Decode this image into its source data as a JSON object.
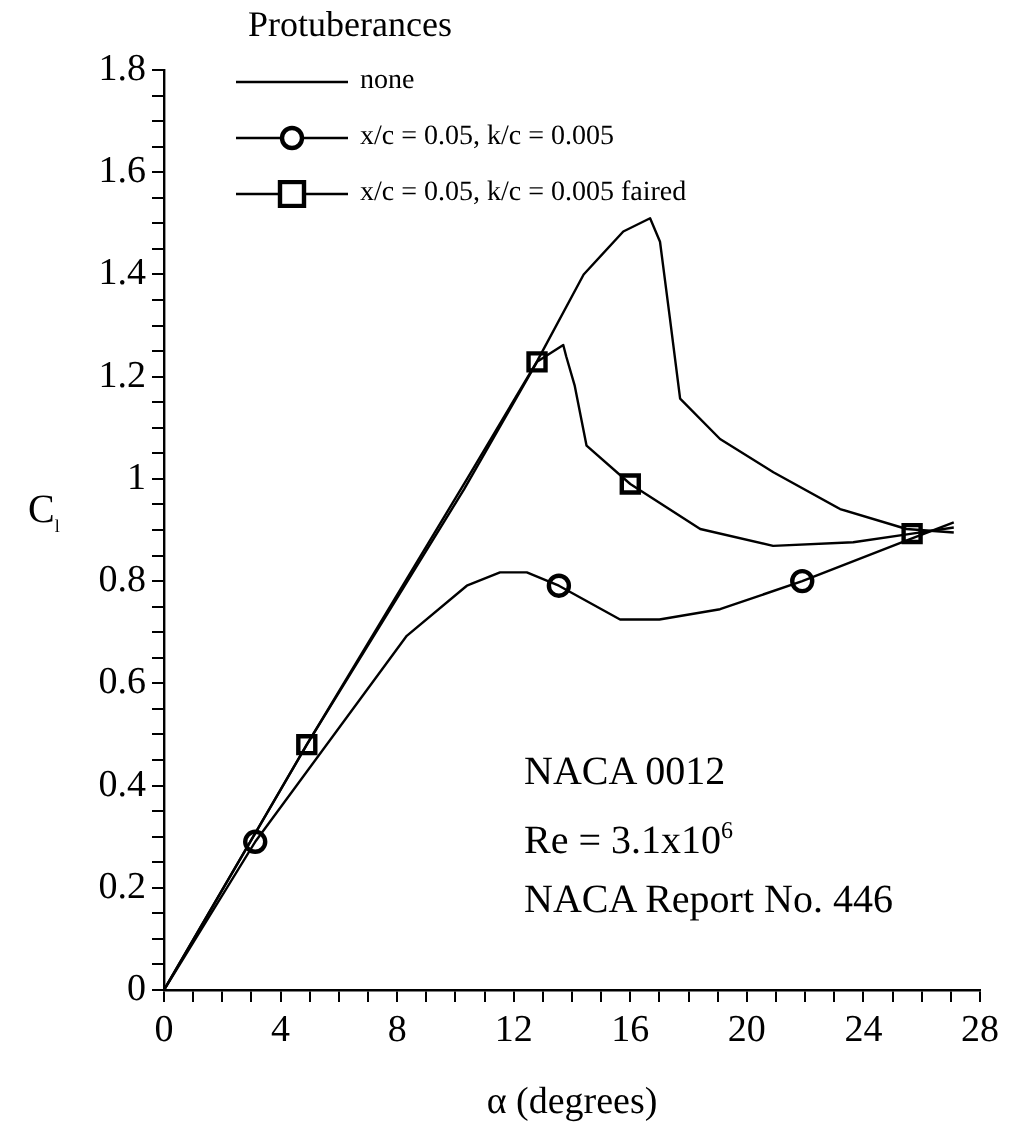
{
  "chart_data": {
    "type": "line",
    "xlabel": "α (degrees)",
    "ylabel": "C$_{l}$",
    "legend_title": "Protuberances",
    "legend": "top left",
    "grid": false,
    "line_style": "solid",
    "xlim": [
      0,
      28
    ],
    "ylim": [
      0,
      1.8
    ],
    "xticks": [
      0,
      {
        "value": 1,
        "label": null
      },
      {
        "value": 2,
        "label": null
      },
      {
        "value": 3,
        "label": null
      },
      4,
      {
        "value": 5,
        "label": null
      },
      {
        "value": 6,
        "label": null
      },
      {
        "value": 7,
        "label": null
      },
      8,
      {
        "value": 9,
        "label": null
      },
      {
        "value": 10,
        "label": null
      },
      {
        "value": 11,
        "label": null
      },
      12,
      {
        "value": 13,
        "label": null
      },
      {
        "value": 14,
        "label": null
      },
      {
        "value": 15,
        "label": null
      },
      16,
      {
        "value": 17,
        "label": null
      },
      {
        "value": 18,
        "label": null
      },
      {
        "value": 19,
        "label": null
      },
      20,
      {
        "value": 21,
        "label": null
      },
      {
        "value": 22,
        "label": null
      },
      {
        "value": 23,
        "label": null
      },
      24,
      {
        "value": 25,
        "label": null
      },
      {
        "value": 26,
        "label": null
      },
      {
        "value": 27,
        "label": null
      },
      28
    ],
    "yticks": [
      0,
      {
        "value": 0.05,
        "label": null
      },
      {
        "value": 0.1,
        "label": null
      },
      {
        "value": 0.15,
        "label": null
      },
      0.2,
      {
        "value": 0.25,
        "label": null
      },
      {
        "value": 0.3,
        "label": null
      },
      {
        "value": 0.35,
        "label": null
      },
      0.4,
      {
        "value": 0.45,
        "label": null
      },
      {
        "value": 0.5,
        "label": null
      },
      {
        "value": 0.55,
        "label": null
      },
      0.6,
      {
        "value": 0.65,
        "label": null
      },
      {
        "value": 0.7,
        "label": null
      },
      {
        "value": 0.75,
        "label": null
      },
      0.8,
      {
        "value": 0.85,
        "label": null
      },
      {
        "value": 0.9,
        "label": null
      },
      {
        "value": 0.95,
        "label": null
      },
      1,
      {
        "value": 1.05,
        "label": null
      },
      {
        "value": 1.1,
        "label": null
      },
      {
        "value": 1.15,
        "label": null
      },
      1.2,
      {
        "value": 1.25,
        "label": null
      },
      {
        "value": 1.3,
        "label": null
      },
      {
        "value": 1.35,
        "label": null
      },
      1.4,
      {
        "value": 1.45,
        "label": null
      },
      {
        "value": 1.5,
        "label": null
      },
      {
        "value": 1.55,
        "label": null
      },
      1.6,
      {
        "value": 1.65,
        "label": null
      },
      {
        "value": 1.7,
        "label": null
      },
      {
        "value": 1.75,
        "label": null
      },
      1.8
    ],
    "series": [
      {
        "name": "none",
        "marker": "none",
        "color": "#000000",
        "x": [
          0,
          4.9,
          10.4,
          12.8,
          14.4,
          15.76,
          16.68,
          17.02,
          17.36,
          17.71,
          19.08,
          20.91,
          23.2,
          25.48,
          27.1
        ],
        "values": [
          0,
          0.48,
          1.0,
          1.23,
          1.4,
          1.484,
          1.51,
          1.464,
          1.314,
          1.157,
          1.078,
          1.013,
          0.941,
          0.902,
          0.895
        ]
      },
      {
        "name": "x/c = 0.05, k/c = 0.005",
        "marker": "none",
        "color": "#000000",
        "x": [
          0,
          3.13,
          8.33,
          10.39,
          11.53,
          12.45,
          13.55,
          15.65,
          17.0,
          19.08,
          21.9,
          25.6,
          27.1
        ],
        "values": [
          0,
          0.29,
          0.693,
          0.791,
          0.817,
          0.817,
          0.791,
          0.725,
          0.725,
          0.745,
          0.8,
          0.882,
          0.915
        ]
      },
      {
        "name": "x/c = 0.05, k/c = 0.005 faired",
        "marker": "none",
        "color": "#000000",
        "x": [
          0,
          4.9,
          10.3,
          12.8,
          13.7,
          13.8,
          14.09,
          14.5,
          16.0,
          18.4,
          20.9,
          23.65,
          25.67,
          27.1
        ],
        "values": [
          0,
          0.48,
          0.98,
          1.229,
          1.262,
          1.24,
          1.183,
          1.065,
          0.99,
          0.902,
          0.869,
          0.876,
          0.893,
          0.905
        ]
      },
      {
        "type": "scatter",
        "marker": "circle",
        "color": "#000000",
        "x": [
          3.13,
          13.55,
          21.9
        ],
        "values": [
          0.29,
          0.791,
          0.8
        ]
      },
      {
        "type": "scatter",
        "marker": "square",
        "color": "#000000",
        "x": [
          4.9,
          12.8,
          16.0,
          25.67
        ],
        "values": [
          0.48,
          1.229,
          0.99,
          0.893
        ]
      }
    ],
    "annotations": [
      "NACA 0012",
      "Re = 3.1x10$^{6}$",
      "NACA Report No. 446"
    ]
  }
}
